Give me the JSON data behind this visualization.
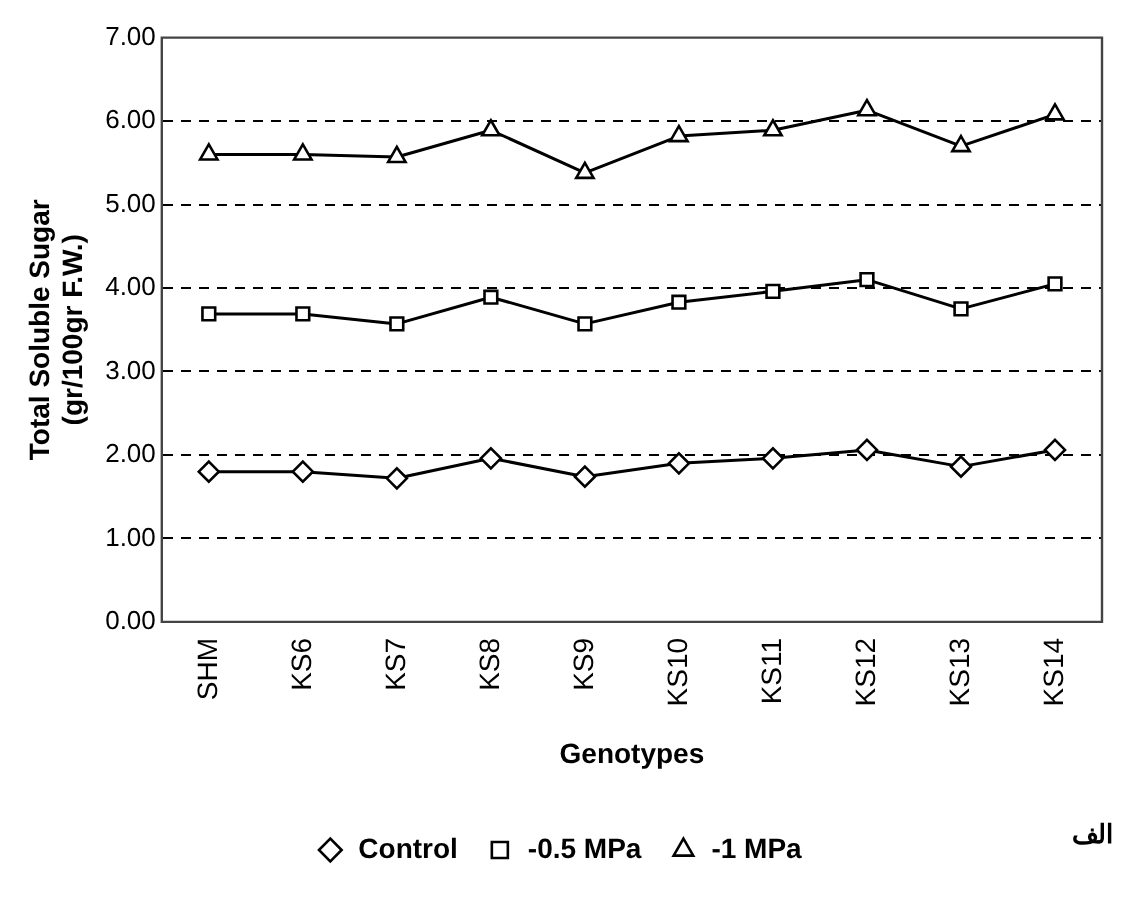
{
  "chart_data": {
    "type": "line",
    "xlabel": "Genotypes",
    "ylabel": "Total Soluble Sugar (gr/100gr F.W.)",
    "categories": [
      "SHM",
      "KS6",
      "KS7",
      "KS8",
      "KS9",
      "KS10",
      "KS11",
      "KS12",
      "KS13",
      "KS14"
    ],
    "series": [
      {
        "name": "Control",
        "color": "#000000",
        "marker": "diamond",
        "values": [
          1.8,
          1.8,
          1.72,
          1.96,
          1.74,
          1.9,
          1.96,
          2.06,
          1.86,
          2.06
        ]
      },
      {
        "name": "-0.5 MPa",
        "color": "#000000",
        "marker": "square",
        "values": [
          3.69,
          3.69,
          3.57,
          3.89,
          3.57,
          3.83,
          3.96,
          4.1,
          3.75,
          4.05
        ]
      },
      {
        "name": "-1 MPa",
        "color": "#000000",
        "marker": "triangle",
        "values": [
          5.6,
          5.6,
          5.57,
          5.89,
          5.38,
          5.82,
          5.89,
          6.13,
          5.7,
          6.08
        ]
      }
    ],
    "ylim": [
      0,
      7
    ],
    "yticks": [
      {
        "value": 0,
        "label": "0.00"
      },
      {
        "value": 1,
        "label": "1.00"
      },
      {
        "value": 2,
        "label": "2.00"
      },
      {
        "value": 3,
        "label": "3.00"
      },
      {
        "value": 4,
        "label": "4.00"
      },
      {
        "value": 5,
        "label": "5.00"
      },
      {
        "value": 6,
        "label": "6.00"
      },
      {
        "value": 7,
        "label": "7.00"
      }
    ],
    "grid": "y",
    "line_style": "solid",
    "legend": "bottom",
    "annotations": [
      "الف"
    ]
  }
}
